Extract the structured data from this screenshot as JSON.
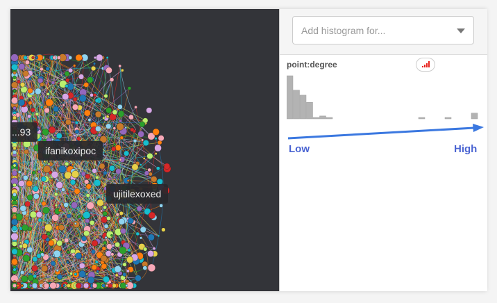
{
  "graph": {
    "labels": [
      {
        "text": "...93"
      },
      {
        "text": "ifanikoxipoc"
      },
      {
        "text": "ujitilexoxed"
      }
    ]
  },
  "panel": {
    "select": {
      "placeholder": "Add histogram for..."
    },
    "histogram_title": "point:degree",
    "scale_icon": "signal-bars-icon",
    "scale_color": "#e8221c",
    "low_label": "Low",
    "high_label": "High",
    "arrow_color": "#3b78e0"
  },
  "chart_data": {
    "type": "bar",
    "title": "point:degree",
    "values": [
      60,
      40,
      33,
      23,
      1,
      4,
      1,
      0,
      0,
      0,
      0,
      0,
      0,
      0,
      0,
      0,
      0,
      0,
      0,
      0,
      1,
      0,
      0,
      0,
      1,
      0,
      0,
      0,
      8
    ],
    "color": "#b3b3b3"
  }
}
